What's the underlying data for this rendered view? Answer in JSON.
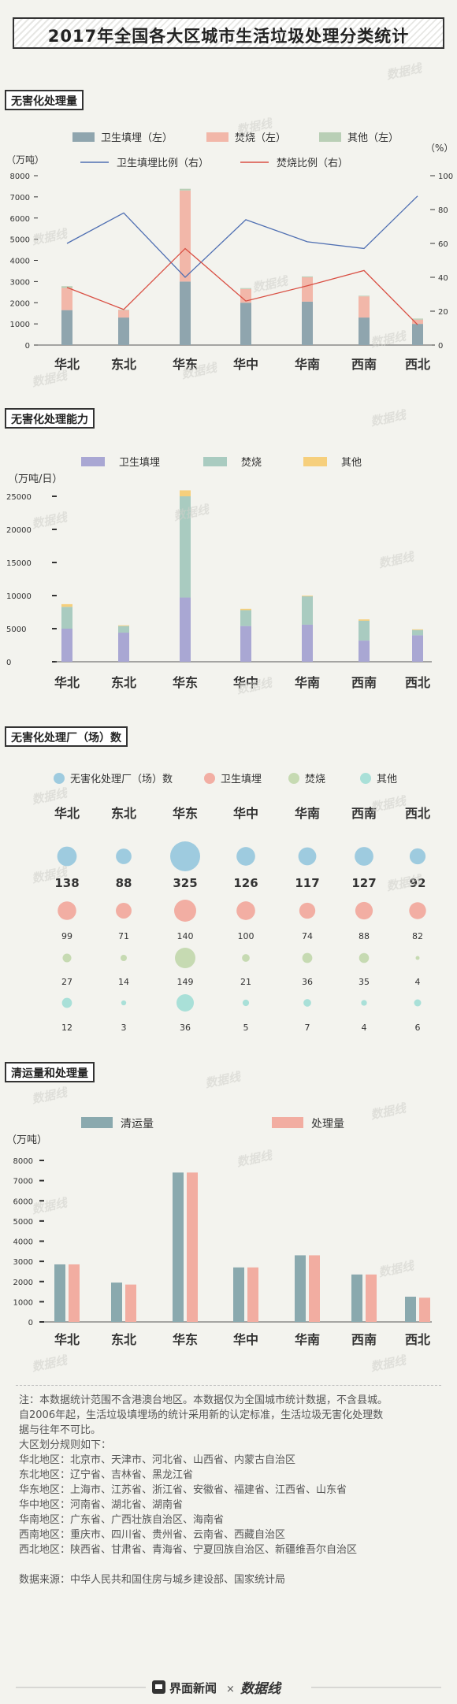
{
  "page_title": "2017年全国各大区城市生活垃圾处理分类统计",
  "sections": {
    "s1": "无害化处理量",
    "s2": "无害化处理能力",
    "s3": "无害化处理厂（场）数",
    "s4": "清运量和处理量"
  },
  "watermark": "数据线",
  "chart_data": [
    {
      "type": "bar",
      "stacked": true,
      "categories": [
        "华北",
        "东北",
        "华东",
        "华中",
        "华南",
        "西南",
        "西北"
      ],
      "ylabel": "（万吨）",
      "y2label": "（%）",
      "ylim": [
        0,
        8000
      ],
      "yticks": [
        0,
        1000,
        2000,
        3000,
        4000,
        5000,
        6000,
        7000,
        8000
      ],
      "y2lim": [
        0,
        100
      ],
      "y2ticks": [
        0,
        20,
        40,
        60,
        80,
        100
      ],
      "legend": [
        "卫生填埋（左）",
        "焚烧（左）",
        "其他（左）",
        "卫生填埋比例（右）",
        "焚烧比例（右）"
      ],
      "series": [
        {
          "name": "卫生填埋（左）",
          "color": "#8fa5ae",
          "values": [
            1650,
            1300,
            3000,
            2000,
            2050,
            1300,
            1000
          ]
        },
        {
          "name": "焚烧（左）",
          "color": "#f2b7a9",
          "values": [
            1050,
            350,
            4300,
            650,
            1150,
            1000,
            200
          ]
        },
        {
          "name": "其他（左）",
          "color": "#b9cfb6",
          "values": [
            80,
            20,
            80,
            40,
            40,
            30,
            50
          ]
        }
      ],
      "line_series": [
        {
          "name": "卫生填埋比例（右）",
          "color": "#4f6fb2",
          "values": [
            60,
            78,
            40,
            74,
            61,
            57,
            88
          ]
        },
        {
          "name": "焚烧比例（右）",
          "color": "#d94f43",
          "values": [
            34,
            21,
            57,
            26,
            35,
            44,
            12
          ]
        }
      ]
    },
    {
      "type": "bar",
      "stacked": true,
      "categories": [
        "华北",
        "东北",
        "华东",
        "华中",
        "华南",
        "西南",
        "西北"
      ],
      "ylabel": "（万吨/日）",
      "ylim": [
        0,
        25000
      ],
      "yticks": [
        0,
        5000,
        10000,
        15000,
        20000,
        25000
      ],
      "legend": [
        "卫生填埋",
        "焚烧",
        "其他"
      ],
      "series": [
        {
          "name": "卫生填埋",
          "color": "#a9a7d3",
          "values": [
            5000,
            4400,
            9700,
            5400,
            5600,
            3200,
            4000
          ]
        },
        {
          "name": "焚烧",
          "color": "#a9cbc0",
          "values": [
            3300,
            1000,
            15300,
            2400,
            4300,
            3000,
            800
          ]
        },
        {
          "name": "其他",
          "color": "#f6cf7c",
          "values": [
            400,
            100,
            900,
            200,
            100,
            200,
            100
          ]
        }
      ]
    },
    {
      "type": "table",
      "categories": [
        "华北",
        "东北",
        "华东",
        "华中",
        "华南",
        "西南",
        "西北"
      ],
      "legend": [
        "无害化处理厂（场）数",
        "卫生填埋",
        "焚烧",
        "其他"
      ],
      "series": [
        {
          "name": "无害化处理厂（场）数",
          "color": "#9ecbdf",
          "values": [
            138,
            88,
            325,
            126,
            117,
            127,
            92
          ]
        },
        {
          "name": "卫生填埋",
          "color": "#f2aea3",
          "values": [
            99,
            71,
            140,
            100,
            74,
            88,
            82
          ]
        },
        {
          "name": "焚烧",
          "color": "#c6dab2",
          "values": [
            27,
            14,
            149,
            21,
            36,
            35,
            4
          ]
        },
        {
          "name": "其他",
          "color": "#a9e0d8",
          "values": [
            12,
            3,
            36,
            5,
            7,
            4,
            6
          ]
        }
      ]
    },
    {
      "type": "bar",
      "categories": [
        "华北",
        "东北",
        "华东",
        "华中",
        "华南",
        "西南",
        "西北"
      ],
      "ylabel": "（万吨）",
      "ylim": [
        0,
        8000
      ],
      "yticks": [
        0,
        1000,
        2000,
        3000,
        4000,
        5000,
        6000,
        7000,
        8000
      ],
      "legend": [
        "清运量",
        "处理量"
      ],
      "series": [
        {
          "name": "清运量",
          "color": "#8aa9ae",
          "values": [
            2850,
            1950,
            7400,
            2700,
            3300,
            2350,
            1250
          ]
        },
        {
          "name": "处理量",
          "color": "#f2ada1",
          "values": [
            2850,
            1850,
            7400,
            2700,
            3300,
            2350,
            1200
          ]
        }
      ]
    }
  ],
  "notes": [
    "注：本数据统计范围不含港澳台地区。本数据仅为全国城市统计数据，不含县城。",
    "自2006年起，生活垃圾填埋场的统计采用新的认定标准，生活垃圾无害化处理数",
    "据与往年不可比。",
    "大区划分规则如下：",
    "华北地区：北京市、天津市、河北省、山西省、内蒙古自治区",
    "东北地区：辽宁省、吉林省、黑龙江省",
    "华东地区：上海市、江苏省、浙江省、安徽省、福建省、江西省、山东省",
    "华中地区：河南省、湖北省、湖南省",
    "华南地区：广东省、广西壮族自治区、海南省",
    "西南地区：重庆市、四川省、贵州省、云南省、西藏自治区",
    "西北地区：陕西省、甘肃省、青海省、宁夏回族自治区、新疆维吾尔自治区",
    "",
    "数据来源：中华人民共和国住房与城乡建设部、国家统计局"
  ],
  "footer": {
    "brand": "界面新闻",
    "times": "×",
    "partner": "数据线"
  }
}
